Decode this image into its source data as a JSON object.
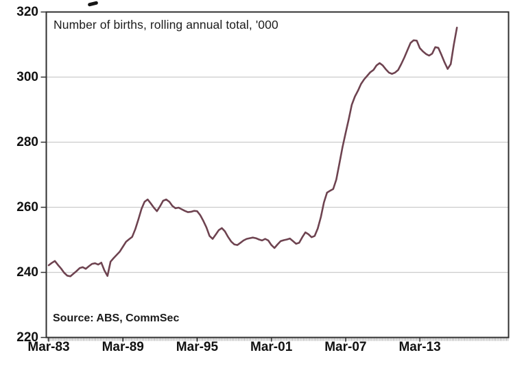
{
  "chart_data": {
    "type": "line",
    "title": "Number of births, rolling annual total, '000",
    "source_note": "Source: ABS, CommSec",
    "xlabel": "",
    "ylabel": "",
    "ylim": [
      220,
      320
    ],
    "y_ticks": [
      220,
      240,
      260,
      280,
      300,
      320
    ],
    "gridlines_at": [
      240,
      260,
      280,
      300
    ],
    "grid_on": true,
    "legend": "none",
    "frequency": "quarterly",
    "x_start_label": "Mar-83",
    "x_tick_labels": [
      "Mar-83",
      "Mar-89",
      "Mar-95",
      "Mar-01",
      "Mar-07",
      "Mar-13"
    ],
    "x_tick_quarter_indices": [
      0,
      24,
      48,
      72,
      96,
      120
    ],
    "line_color": "#6e4350",
    "grid_color": "#cbcbcb",
    "axis_color": "#2f2f2f",
    "minor_tick_color": "#a0a0a0",
    "series": [
      {
        "name": "Number of births, rolling annual total, '000",
        "values": [
          242.2,
          242.9,
          243.5,
          242.3,
          241.2,
          239.9,
          239.0,
          238.8,
          239.6,
          240.4,
          241.3,
          241.6,
          241.1,
          241.9,
          242.6,
          242.8,
          242.4,
          243.0,
          240.6,
          238.9,
          243.3,
          244.4,
          245.4,
          246.4,
          247.9,
          249.4,
          250.2,
          250.9,
          253.3,
          256.3,
          259.5,
          261.7,
          262.4,
          261.2,
          259.9,
          258.8,
          260.3,
          262.0,
          262.4,
          261.7,
          260.4,
          259.7,
          259.9,
          259.4,
          258.9,
          258.5,
          258.6,
          258.9,
          258.8,
          257.6,
          255.8,
          253.8,
          251.2,
          250.3,
          251.6,
          253.0,
          253.6,
          252.6,
          250.9,
          249.5,
          248.6,
          248.4,
          249.1,
          249.8,
          250.3,
          250.5,
          250.7,
          250.5,
          250.1,
          249.8,
          250.3,
          249.8,
          248.4,
          247.5,
          248.6,
          249.6,
          249.9,
          250.1,
          250.4,
          249.6,
          248.8,
          249.1,
          250.8,
          252.3,
          251.7,
          250.8,
          251.2,
          253.5,
          257.0,
          261.5,
          264.5,
          265.1,
          265.6,
          268.5,
          273.5,
          278.5,
          282.8,
          287.0,
          291.5,
          294.0,
          295.8,
          297.9,
          299.3,
          300.4,
          301.5,
          302.2,
          303.6,
          304.3,
          303.6,
          302.4,
          301.4,
          301.0,
          301.4,
          302.2,
          304.0,
          306.0,
          308.3,
          310.5,
          311.3,
          311.2,
          308.9,
          307.9,
          307.1,
          306.6,
          307.2,
          309.2,
          309.0,
          306.8,
          304.5,
          302.5,
          304.0,
          310.0,
          315.2
        ]
      }
    ]
  }
}
